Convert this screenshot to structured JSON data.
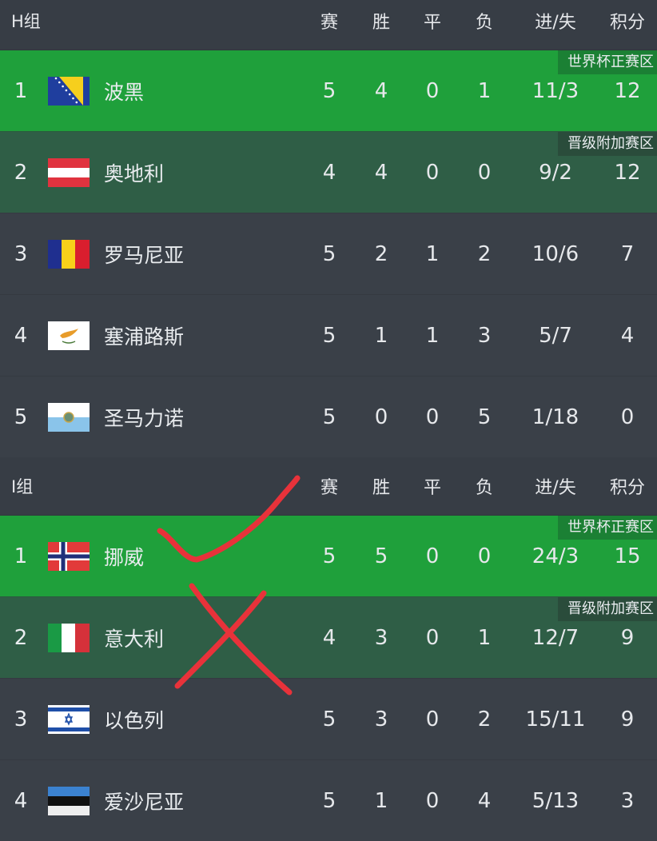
{
  "columns": [
    "赛",
    "胜",
    "平",
    "负",
    "进/失",
    "积分"
  ],
  "zone_colors": {
    "world_cup": "#1fa03b",
    "playoff": "#2f5e46",
    "default": "#3a4048"
  },
  "annotation_color": "#e8323a",
  "groups": [
    {
      "name": "H组",
      "rows": [
        {
          "rank": "1",
          "team": "波黑",
          "flag": "bosnia",
          "zone": "z1",
          "badge": "世界杯正赛区",
          "p": "5",
          "w": "4",
          "d": "0",
          "l": "1",
          "gf_ga": "11/3",
          "pts": "12"
        },
        {
          "rank": "2",
          "team": "奥地利",
          "flag": "austria",
          "zone": "z2",
          "badge": "晋级附加赛区",
          "p": "4",
          "w": "4",
          "d": "0",
          "l": "0",
          "gf_ga": "9/2",
          "pts": "12"
        },
        {
          "rank": "3",
          "team": "罗马尼亚",
          "flag": "romania",
          "zone": "",
          "badge": "",
          "p": "5",
          "w": "2",
          "d": "1",
          "l": "2",
          "gf_ga": "10/6",
          "pts": "7"
        },
        {
          "rank": "4",
          "team": "塞浦路斯",
          "flag": "cyprus",
          "zone": "",
          "badge": "",
          "p": "5",
          "w": "1",
          "d": "1",
          "l": "3",
          "gf_ga": "5/7",
          "pts": "4"
        },
        {
          "rank": "5",
          "team": "圣马力诺",
          "flag": "san-marino",
          "zone": "",
          "badge": "",
          "p": "5",
          "w": "0",
          "d": "0",
          "l": "5",
          "gf_ga": "1/18",
          "pts": "0"
        }
      ]
    },
    {
      "name": "I组",
      "rows": [
        {
          "rank": "1",
          "team": "挪威",
          "flag": "norway",
          "zone": "z1",
          "badge": "世界杯正赛区",
          "p": "5",
          "w": "5",
          "d": "0",
          "l": "0",
          "gf_ga": "24/3",
          "pts": "15"
        },
        {
          "rank": "2",
          "team": "意大利",
          "flag": "italy",
          "zone": "z2",
          "badge": "晋级附加赛区",
          "p": "4",
          "w": "3",
          "d": "0",
          "l": "1",
          "gf_ga": "12/7",
          "pts": "9"
        },
        {
          "rank": "3",
          "team": "以色列",
          "flag": "israel",
          "zone": "",
          "badge": "",
          "p": "5",
          "w": "3",
          "d": "0",
          "l": "2",
          "gf_ga": "15/11",
          "pts": "9"
        },
        {
          "rank": "4",
          "team": "爱沙尼亚",
          "flag": "estonia",
          "zone": "",
          "badge": "",
          "p": "5",
          "w": "1",
          "d": "0",
          "l": "4",
          "gf_ga": "5/13",
          "pts": "3"
        }
      ]
    }
  ]
}
